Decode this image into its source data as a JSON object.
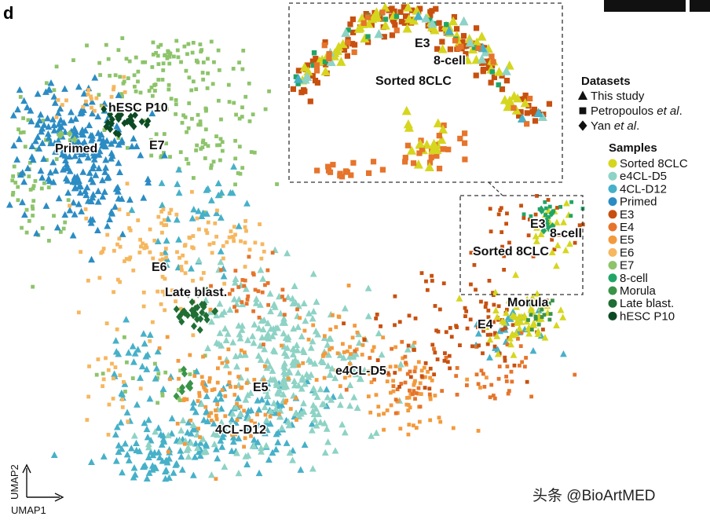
{
  "panel_letter": "d",
  "watermark": "头条 @BioArtMED",
  "chart_data": {
    "type": "scatter",
    "xlabel": "UMAP1",
    "ylabel": "UMAP2",
    "grid": false,
    "legend_placement": "right",
    "datasets_title": "Datasets",
    "datasets": [
      {
        "name": "This study",
        "marker": "triangle",
        "label_parts": [
          "This study"
        ]
      },
      {
        "name": "Petropoulos et al.",
        "marker": "square",
        "label_parts": [
          "Petropoulos ",
          "et al",
          "."
        ]
      },
      {
        "name": "Yan et al.",
        "marker": "diamond",
        "label_parts": [
          "Yan ",
          "et al",
          "."
        ]
      }
    ],
    "samples_title": "Samples",
    "samples": [
      {
        "name": "Sorted 8CLC",
        "color": "#d6d61e"
      },
      {
        "name": "e4CL-D5",
        "color": "#8ed3c5"
      },
      {
        "name": "4CL-D12",
        "color": "#46b1c8"
      },
      {
        "name": "Primed",
        "color": "#2b8cc4"
      },
      {
        "name": "E3",
        "color": "#c8500f"
      },
      {
        "name": "E4",
        "color": "#e6742b"
      },
      {
        "name": "E5",
        "color": "#f39a3c"
      },
      {
        "name": "E6",
        "color": "#f6b75e"
      },
      {
        "name": "E7",
        "color": "#8dc46a"
      },
      {
        "name": "8-cell",
        "color": "#21a567"
      },
      {
        "name": "Morula",
        "color": "#3a9448"
      },
      {
        "name": "Late blast.",
        "color": "#1f6e34"
      },
      {
        "name": "hESC P10",
        "color": "#0c4a23"
      }
    ],
    "cluster_labels": [
      "hESC P10",
      "E7",
      "Primed",
      "E6",
      "Late blast.",
      "E5",
      "4CL-D12",
      "e4CL-D5",
      "E3",
      "8-cell",
      "Sorted 8CLC",
      "Morula",
      "E4"
    ],
    "inset_labels": [
      "E3",
      "8-cell",
      "Sorted 8CLC"
    ]
  }
}
